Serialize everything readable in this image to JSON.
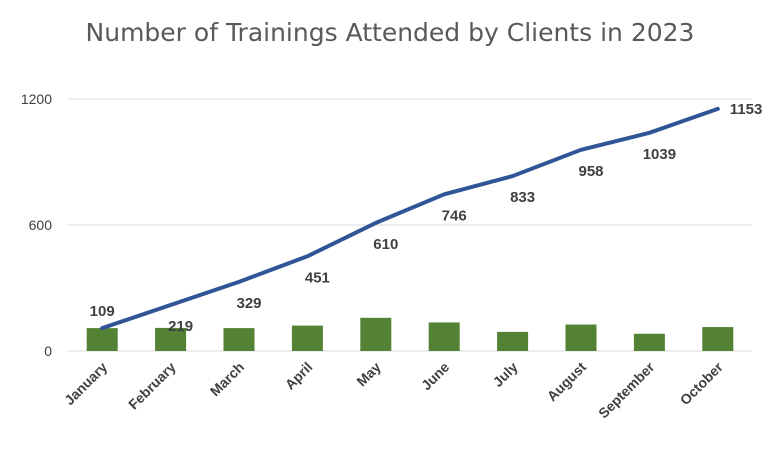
{
  "chart_data": {
    "type": "bar",
    "title": "Number of Trainings Attended by Clients in 2023",
    "categories": [
      "January",
      "February",
      "March",
      "April",
      "May",
      "June",
      "July",
      "August",
      "September",
      "October"
    ],
    "series": [
      {
        "type": "bar",
        "values": [
          109,
          110,
          109,
          121,
          158,
          136,
          91,
          126,
          82,
          114
        ]
      },
      {
        "type": "line",
        "values": [
          109,
          219,
          329,
          451,
          610,
          746,
          833,
          958,
          1039,
          1153
        ]
      }
    ],
    "ylim": [
      0,
      1200
    ],
    "yticks": [
      0,
      600,
      1200
    ],
    "grid": true,
    "legend": "none",
    "colors": {
      "bar": "#548235",
      "line": "#2F5597",
      "grid": "#d9d9d9",
      "text": "#404040"
    }
  }
}
